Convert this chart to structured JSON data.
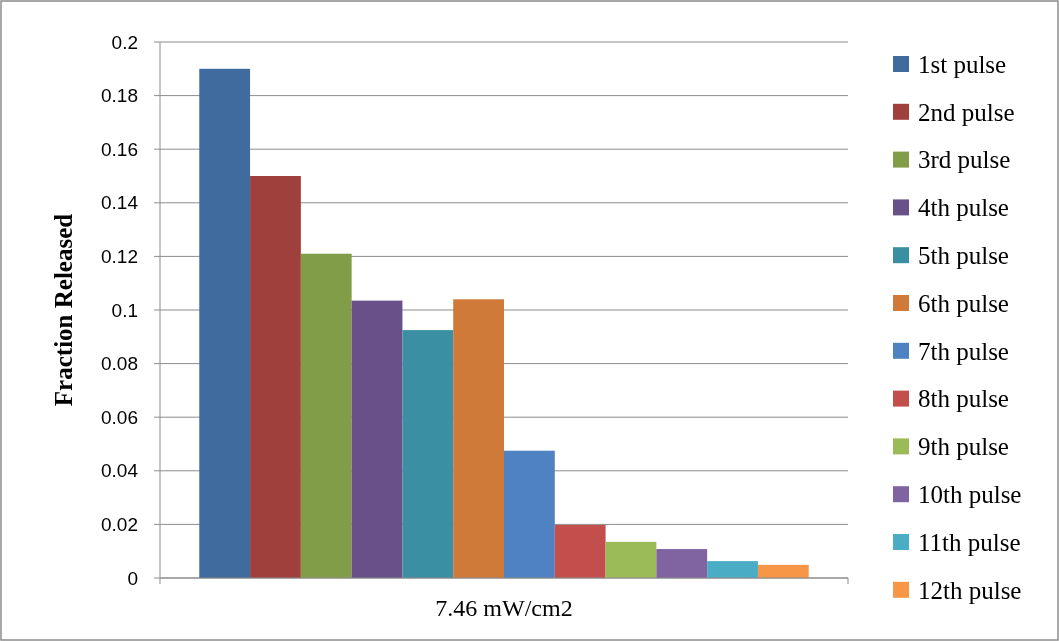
{
  "chart_data": {
    "type": "bar",
    "categories": [
      "7.46 mW/cm2"
    ],
    "ylabel": "Fraction Released",
    "ylim": [
      0,
      0.2
    ],
    "yticks": [
      0,
      0.02,
      0.04,
      0.06,
      0.08,
      0.1,
      0.12,
      0.14,
      0.16,
      0.18,
      0.2
    ],
    "grid": "y",
    "legend": "right",
    "series": [
      {
        "name": "1st pulse",
        "color": "#3f6b9e",
        "values": [
          0.19
        ]
      },
      {
        "name": "2nd pulse",
        "color": "#a0403d",
        "values": [
          0.15
        ]
      },
      {
        "name": "3rd pulse",
        "color": "#829d47",
        "values": [
          0.121
        ]
      },
      {
        "name": "4th pulse",
        "color": "#6a5088",
        "values": [
          0.1035
        ]
      },
      {
        "name": "5th pulse",
        "color": "#3a8fa3",
        "values": [
          0.0925
        ]
      },
      {
        "name": "6th pulse",
        "color": "#cf7a39",
        "values": [
          0.104
        ]
      },
      {
        "name": "7th pulse",
        "color": "#4f82c2",
        "values": [
          0.0475
        ]
      },
      {
        "name": "8th pulse",
        "color": "#c24f4c",
        "values": [
          0.0198
        ]
      },
      {
        "name": "9th pulse",
        "color": "#9bbb59",
        "values": [
          0.0135
        ]
      },
      {
        "name": "10th pulse",
        "color": "#8064a2",
        "values": [
          0.0108
        ]
      },
      {
        "name": "11th pulse",
        "color": "#4bacc6",
        "values": [
          0.0063
        ]
      },
      {
        "name": "12th pulse",
        "color": "#f79646",
        "values": [
          0.0049
        ]
      }
    ]
  }
}
